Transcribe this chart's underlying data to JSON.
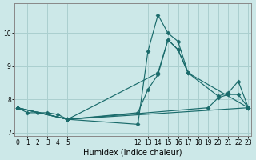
{
  "xlabel": "Humidex (Indice chaleur)",
  "background_color": "#cce8e8",
  "grid_color": "#aacfcf",
  "line_color": "#1a6b6b",
  "series": [
    {
      "x": [
        0,
        1,
        2,
        3,
        4,
        5,
        12,
        13,
        14,
        15,
        16,
        17
      ],
      "y": [
        7.75,
        7.6,
        7.6,
        7.6,
        7.55,
        7.4,
        7.25,
        9.45,
        10.55,
        10.0,
        9.75,
        8.8
      ]
    },
    {
      "x": [
        0,
        5,
        14,
        15,
        16,
        17,
        20,
        21,
        22,
        23
      ],
      "y": [
        7.75,
        7.4,
        8.8,
        9.8,
        9.5,
        8.8,
        8.1,
        8.2,
        8.55,
        7.75
      ]
    },
    {
      "x": [
        0,
        5,
        19,
        20,
        21,
        22,
        23
      ],
      "y": [
        7.75,
        7.4,
        7.75,
        8.05,
        8.15,
        8.15,
        7.75
      ]
    },
    {
      "x": [
        0,
        5,
        23
      ],
      "y": [
        7.75,
        7.4,
        7.75
      ]
    },
    {
      "x": [
        0,
        5,
        12,
        13,
        14,
        15,
        16,
        17,
        23
      ],
      "y": [
        7.75,
        7.4,
        7.6,
        8.3,
        8.75,
        9.8,
        9.5,
        8.8,
        7.75
      ]
    }
  ],
  "xlim": [
    -0.3,
    23.3
  ],
  "ylim": [
    6.9,
    10.9
  ],
  "yticks": [
    7,
    8,
    9,
    10
  ],
  "xticks": [
    0,
    1,
    2,
    3,
    4,
    5,
    12,
    13,
    14,
    15,
    16,
    17,
    18,
    19,
    20,
    21,
    22,
    23
  ],
  "tick_fontsize": 5.5,
  "xlabel_fontsize": 7
}
